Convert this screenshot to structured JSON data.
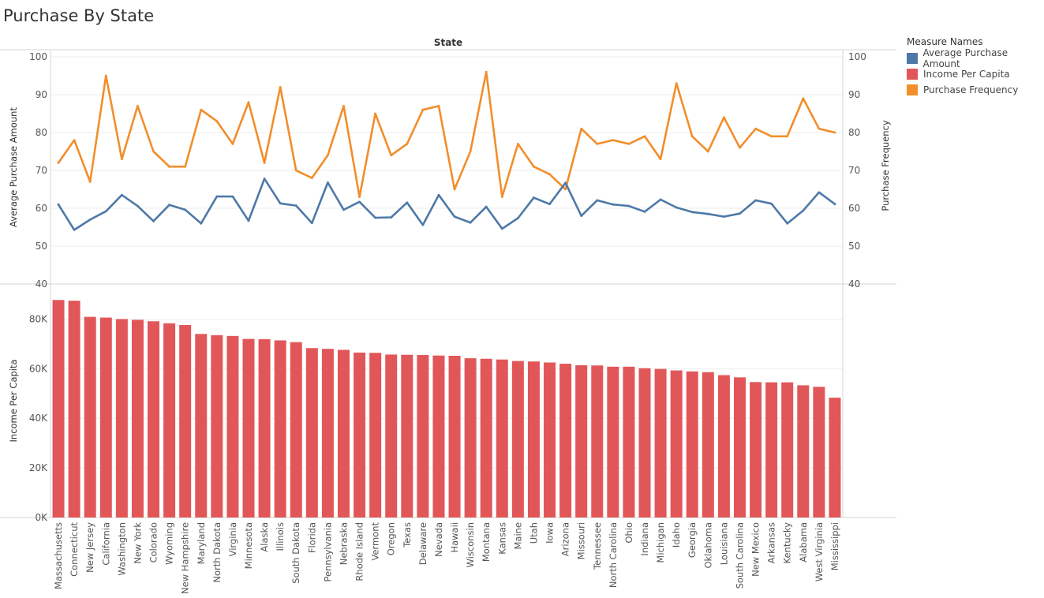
{
  "page": {
    "title": "Purchase By State"
  },
  "legend": {
    "title": "Measure Names",
    "items": [
      {
        "label": "Average Purchase Amount",
        "color": "#4e79a7"
      },
      {
        "label": "Income Per Capita",
        "color": "#e15759"
      },
      {
        "label": "Purchase Frequency",
        "color": "#f28e2b"
      }
    ]
  },
  "chart_data": [
    {
      "type": "line",
      "column_header": "State",
      "categories": [
        "Massachusetts",
        "Connecticut",
        "New Jersey",
        "California",
        "Washington",
        "New York",
        "Colorado",
        "Wyoming",
        "New Hampshire",
        "Maryland",
        "North Dakota",
        "Virginia",
        "Minnesota",
        "Alaska",
        "Illinois",
        "South Dakota",
        "Florida",
        "Pennsylvania",
        "Nebraska",
        "Rhode Island",
        "Vermont",
        "Oregon",
        "Texas",
        "Delaware",
        "Nevada",
        "Hawaii",
        "Wisconsin",
        "Montana",
        "Kansas",
        "Maine",
        "Utah",
        "Iowa",
        "Arizona",
        "Missouri",
        "Tennessee",
        "North Carolina",
        "Ohio",
        "Indiana",
        "Michigan",
        "Idaho",
        "Georgia",
        "Oklahoma",
        "Louisiana",
        "South Carolina",
        "New Mexico",
        "Arkansas",
        "Kentucky",
        "Alabama",
        "West Virginia",
        "Mississippi"
      ],
      "ylabel": "Average Purchase Amount",
      "ylim": [
        40,
        100
      ],
      "yticks": [
        40,
        50,
        60,
        70,
        80,
        90,
        100
      ],
      "y2label": "Purchase Frequency",
      "y2lim": [
        40,
        100
      ],
      "y2ticks": [
        40,
        50,
        60,
        70,
        80,
        90,
        100
      ],
      "grid": true,
      "series": [
        {
          "name": "Average Purchase Amount",
          "axis": "left",
          "color": "#4e79a7",
          "values": [
            61,
            54.3,
            57,
            59.2,
            63.5,
            60.6,
            56.6,
            60.9,
            59.6,
            56,
            63.1,
            63.1,
            56.7,
            67.8,
            61.3,
            60.7,
            56.1,
            66.8,
            59.6,
            61.7,
            57.5,
            57.6,
            61.5,
            55.6,
            63.5,
            57.8,
            56.2,
            60.4,
            54.6,
            57.4,
            62.8,
            61.1,
            66.7,
            58,
            62.1,
            61,
            60.6,
            59.1,
            62.3,
            60.2,
            59,
            58.5,
            57.8,
            58.6,
            62.1,
            61.2,
            56,
            59.4,
            64.2,
            61.1
          ]
        },
        {
          "name": "Purchase Frequency",
          "axis": "right",
          "color": "#f28e2b",
          "values": [
            72,
            78,
            67,
            95,
            73,
            87,
            75,
            71,
            71,
            86,
            83,
            77,
            88,
            72,
            92,
            70,
            68,
            74,
            87,
            63,
            85,
            74,
            77,
            86,
            87,
            65,
            75,
            96,
            63,
            77,
            71,
            69,
            65,
            81,
            77,
            78,
            77,
            79,
            73,
            93,
            79,
            75,
            84,
            76,
            81,
            79,
            79,
            89,
            81,
            80
          ]
        }
      ]
    },
    {
      "type": "bar",
      "categories": [
        "Massachusetts",
        "Connecticut",
        "New Jersey",
        "California",
        "Washington",
        "New York",
        "Colorado",
        "Wyoming",
        "New Hampshire",
        "Maryland",
        "North Dakota",
        "Virginia",
        "Minnesota",
        "Alaska",
        "Illinois",
        "South Dakota",
        "Florida",
        "Pennsylvania",
        "Nebraska",
        "Rhode Island",
        "Vermont",
        "Oregon",
        "Texas",
        "Delaware",
        "Nevada",
        "Hawaii",
        "Wisconsin",
        "Montana",
        "Kansas",
        "Maine",
        "Utah",
        "Iowa",
        "Arizona",
        "Missouri",
        "Tennessee",
        "North Carolina",
        "Ohio",
        "Indiana",
        "Michigan",
        "Idaho",
        "Georgia",
        "Oklahoma",
        "Louisiana",
        "South Carolina",
        "New Mexico",
        "Arkansas",
        "Kentucky",
        "Alabama",
        "West Virginia",
        "Mississippi"
      ],
      "ylabel": "Income Per Capita",
      "ylim": [
        0,
        90000
      ],
      "yticks": [
        0,
        20000,
        40000,
        60000,
        80000
      ],
      "ytick_labels": [
        "0K",
        "20K",
        "40K",
        "60K",
        "80K"
      ],
      "series": [
        {
          "name": "Income Per Capita",
          "color": "#e15759",
          "values": [
            87700,
            87400,
            80900,
            80600,
            80000,
            79700,
            79100,
            78300,
            77600,
            74000,
            73500,
            73200,
            72000,
            71900,
            71400,
            70700,
            68300,
            68000,
            67600,
            66500,
            66400,
            65700,
            65600,
            65500,
            65300,
            65200,
            64200,
            64000,
            63700,
            63100,
            62900,
            62500,
            62000,
            61400,
            61300,
            60800,
            60800,
            60200,
            59900,
            59300,
            58900,
            58600,
            57400,
            56500,
            54600,
            54500,
            54500,
            53300,
            52700,
            48300
          ]
        }
      ]
    }
  ]
}
